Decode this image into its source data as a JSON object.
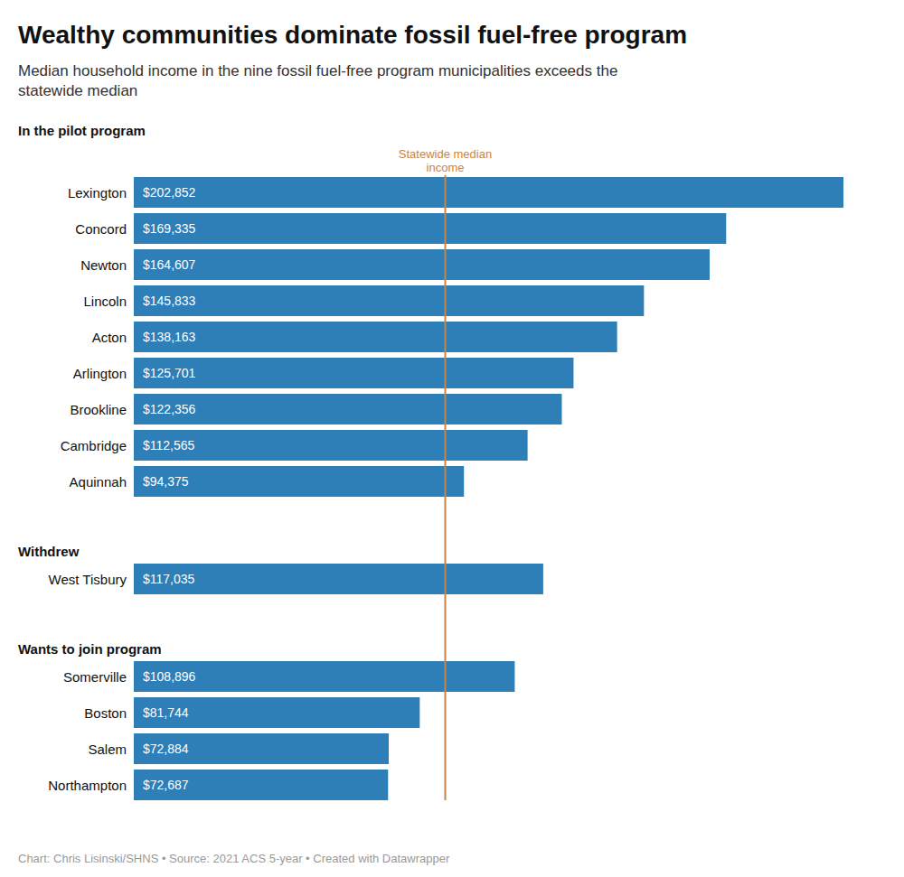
{
  "chart_data": {
    "type": "bar",
    "orientation": "horizontal",
    "title": "Wealthy communities dominate fossil fuel-free program",
    "subtitle": "Median household income in the nine fossil fuel-free program municipalities exceeds the\nstatewide median",
    "footer": "Chart: Chris Lisinski/SHNS • Source: 2021 ACS 5-year • Created with Datawrapper",
    "categories": [
      "Lexington",
      "Concord",
      "Newton",
      "Lincoln",
      "Acton",
      "Arlington",
      "Brookline",
      "Cambridge",
      "Aquinnah",
      "West Tisbury",
      "Somerville",
      "Boston",
      "Salem",
      "Northampton"
    ],
    "groups": [
      "In the pilot program",
      "In the pilot program",
      "In the pilot program",
      "In the pilot program",
      "In the pilot program",
      "In the pilot program",
      "In the pilot program",
      "In the pilot program",
      "In the pilot program",
      "Withdrew",
      "Wants to join program",
      "Wants to join program",
      "Wants to join program",
      "Wants to join program"
    ],
    "values": [
      202852,
      169335,
      164607,
      145833,
      138163,
      125701,
      122356,
      112565,
      94375,
      117035,
      108896,
      81744,
      72884,
      72687
    ],
    "value_labels": [
      "$202,852",
      "$169,335",
      "$164,607",
      "$145,833",
      "$138,163",
      "$125,701",
      "$122,356",
      "$112,565",
      "$94,375",
      "$117,035",
      "$108,896",
      "$81,744",
      "$72,884",
      "$72,687"
    ],
    "data_labels": true,
    "color": "#2e7eb8",
    "xlim": [
      0,
      215000
    ],
    "tick_labels": false,
    "grid": false,
    "reference_lines": [
      {
        "value": 89026,
        "label": "Statewide median\nincome",
        "color": "#c8854a"
      }
    ]
  }
}
